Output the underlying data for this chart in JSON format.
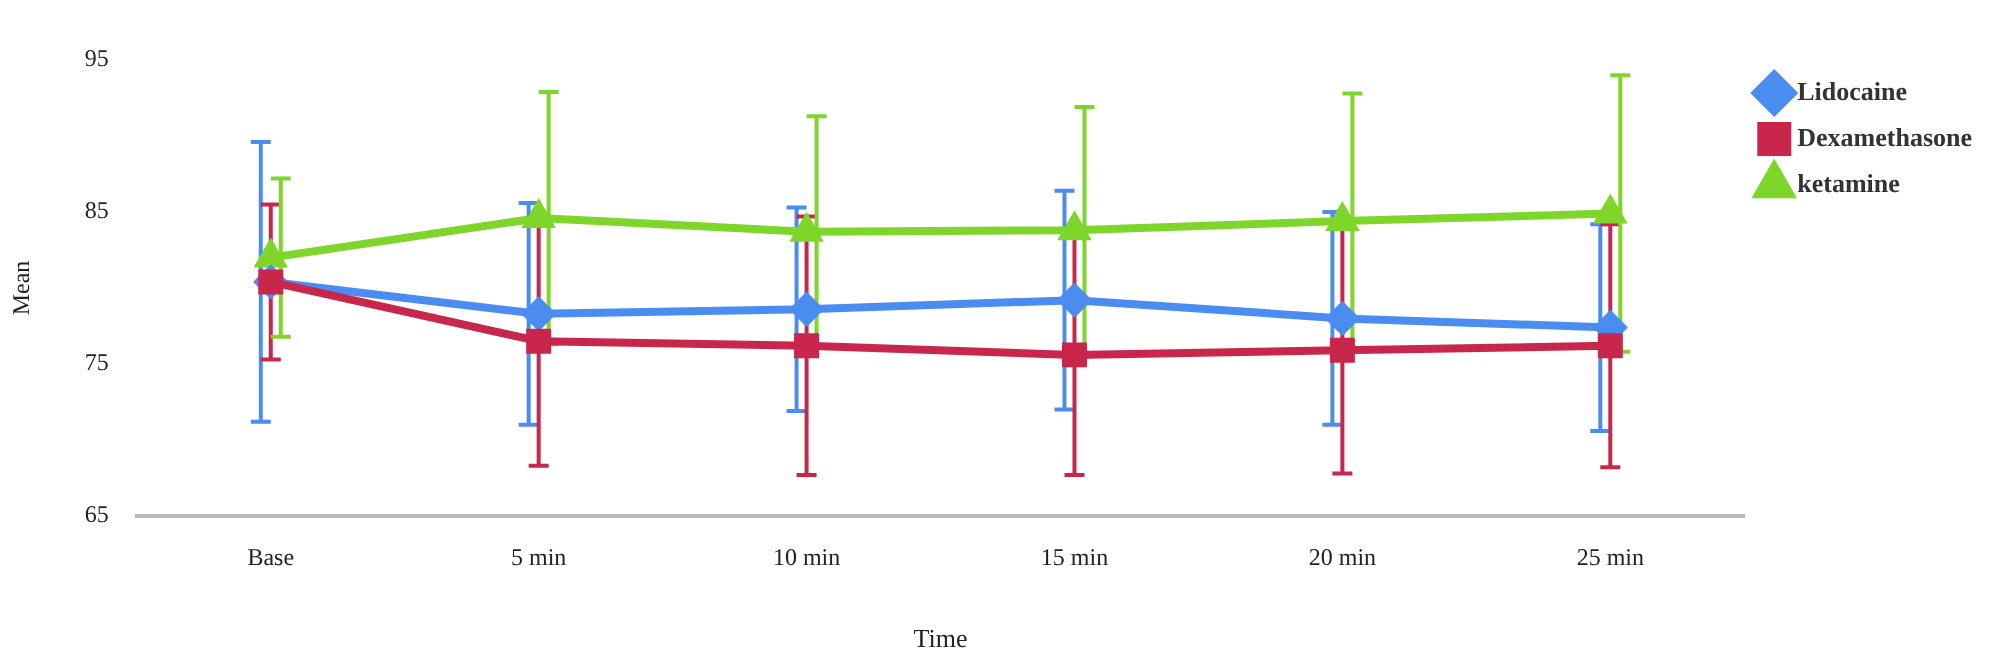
{
  "chart_data": {
    "type": "line",
    "xlabel": "Time",
    "ylabel": "Mean",
    "categories": [
      "Base",
      "5 min",
      "10 min",
      "15 min",
      "20 min",
      "25 min"
    ],
    "ylim": [
      65,
      95
    ],
    "yticks": [
      65,
      75,
      85,
      95
    ],
    "grid": false,
    "legend": "top right",
    "line_style": "solid",
    "series": [
      {
        "name": "Lidocaine",
        "color": "#4a8cf0",
        "marker": "diamond",
        "values": [
          80.4,
          78.3,
          78.6,
          79.2,
          78.0,
          77.4
        ],
        "errors": [
          9.2,
          7.3,
          6.7,
          7.2,
          7.0,
          6.8
        ]
      },
      {
        "name": "Dexamethasone",
        "color": "#c8264a",
        "marker": "square",
        "values": [
          80.4,
          76.5,
          76.2,
          75.6,
          75.9,
          76.2
        ],
        "errors": [
          5.1,
          8.2,
          8.5,
          7.9,
          8.1,
          8.0
        ]
      },
      {
        "name": "ketamine",
        "color": "#7fd62a",
        "marker": "triangle",
        "values": [
          82.0,
          84.6,
          83.7,
          83.8,
          84.4,
          84.9
        ],
        "errors": [
          5.2,
          8.3,
          7.6,
          8.1,
          8.4,
          9.1
        ]
      }
    ]
  }
}
